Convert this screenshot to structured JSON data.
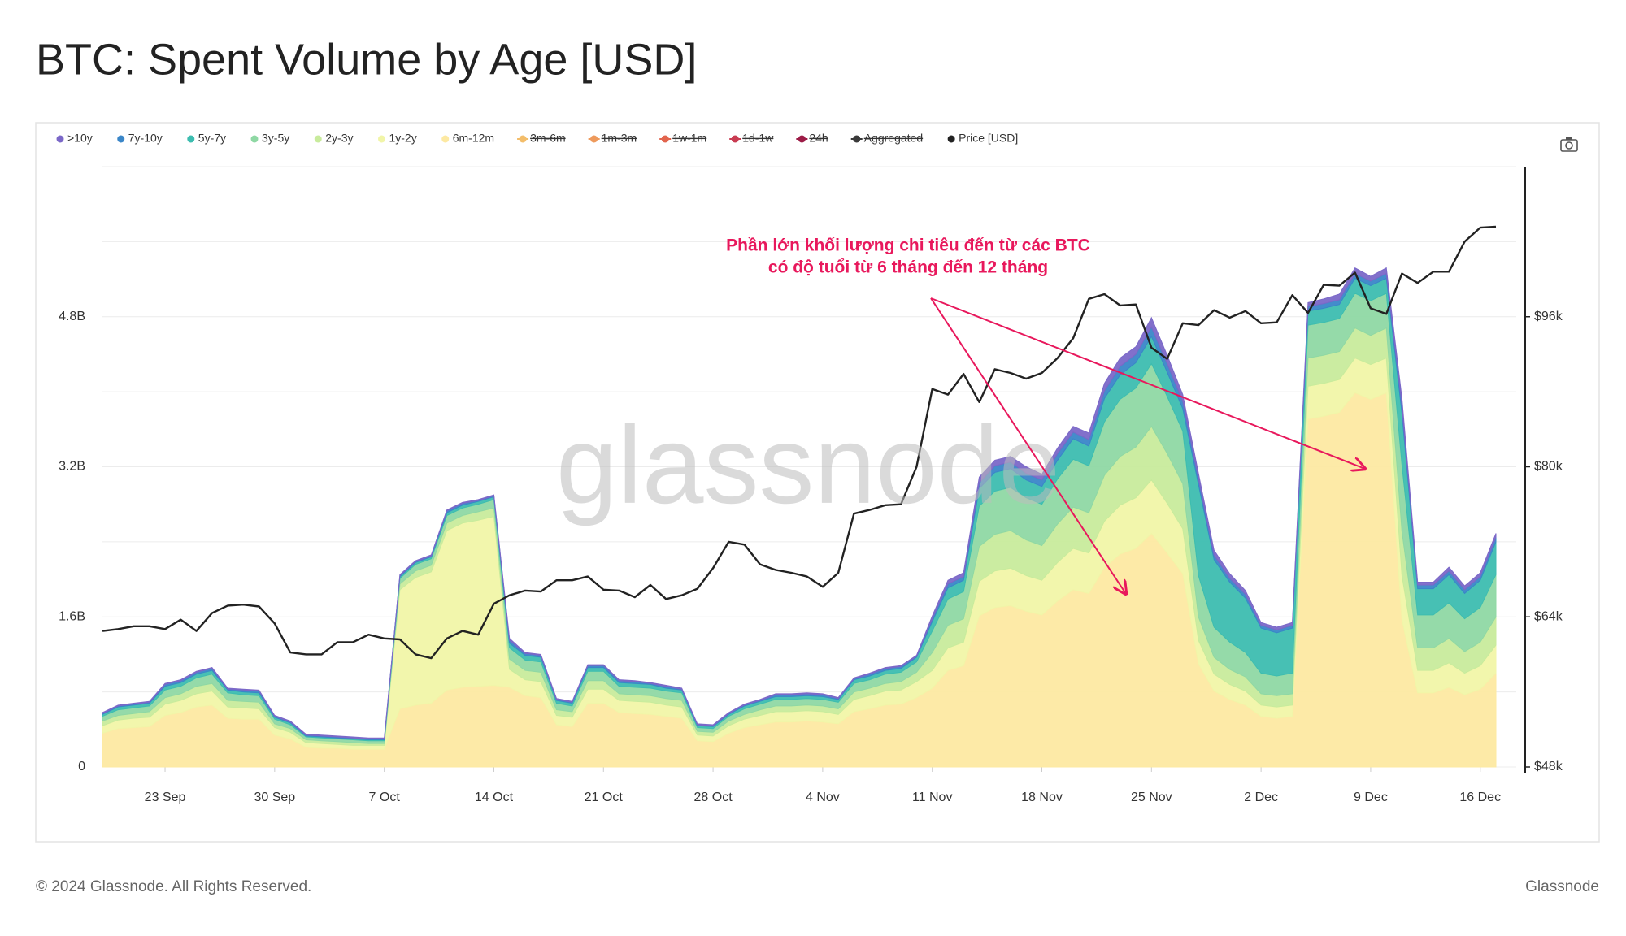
{
  "chart_data": {
    "type": "area",
    "title": "BTC: Spent Volume by Age [USD]",
    "annotation": [
      "Phần lớn khối lượng chi tiêu đến từ các BTC",
      "có độ tuổi từ 6 tháng đến 12 tháng"
    ],
    "watermark": "glassnode",
    "footer_left": "© 2024 Glassnode. All Rights Reserved.",
    "footer_right": "Glassnode",
    "x": [
      "19 Sep",
      "20 Sep",
      "21 Sep",
      "22 Sep",
      "23 Sep",
      "24 Sep",
      "25 Sep",
      "26 Sep",
      "27 Sep",
      "28 Sep",
      "29 Sep",
      "30 Sep",
      "1 Oct",
      "2 Oct",
      "3 Oct",
      "4 Oct",
      "5 Oct",
      "6 Oct",
      "7 Oct",
      "8 Oct",
      "9 Oct",
      "10 Oct",
      "11 Oct",
      "12 Oct",
      "13 Oct",
      "14 Oct",
      "15 Oct",
      "16 Oct",
      "17 Oct",
      "18 Oct",
      "19 Oct",
      "20 Oct",
      "21 Oct",
      "22 Oct",
      "23 Oct",
      "24 Oct",
      "25 Oct",
      "26 Oct",
      "27 Oct",
      "28 Oct",
      "29 Oct",
      "30 Oct",
      "31 Oct",
      "1 Nov",
      "2 Nov",
      "3 Nov",
      "4 Nov",
      "5 Nov",
      "6 Nov",
      "7 Nov",
      "8 Nov",
      "9 Nov",
      "10 Nov",
      "11 Nov",
      "12 Nov",
      "13 Nov",
      "14 Nov",
      "15 Nov",
      "16 Nov",
      "17 Nov",
      "18 Nov",
      "19 Nov",
      "20 Nov",
      "21 Nov",
      "22 Nov",
      "23 Nov",
      "24 Nov",
      "25 Nov",
      "26 Nov",
      "27 Nov",
      "28 Nov",
      "29 Nov",
      "30 Nov",
      "1 Dec",
      "2 Dec",
      "3 Dec",
      "4 Dec",
      "5 Dec",
      "6 Dec",
      "7 Dec",
      "8 Dec",
      "9 Dec",
      "10 Dec",
      "11 Dec",
      "12 Dec",
      "13 Dec",
      "14 Dec",
      "15 Dec",
      "16 Dec",
      "17 Dec"
    ],
    "xticks": [
      "23 Sep",
      "30 Sep",
      "7 Oct",
      "14 Oct",
      "21 Oct",
      "28 Oct",
      "4 Nov",
      "11 Nov",
      "18 Nov",
      "25 Nov",
      "2 Dec",
      "9 Dec",
      "16 Dec"
    ],
    "ylim": [
      0,
      6.4
    ],
    "yticks": [
      0,
      {
        "value": 1.6,
        "label": "1.6B"
      },
      {
        "value": 3.2,
        "label": "3.2B"
      },
      {
        "value": 4.8,
        "label": "4.8B"
      }
    ],
    "minor_grid": [
      0.8,
      2.4,
      4.0,
      5.6,
      6.4
    ],
    "y2lim": [
      48000,
      112000
    ],
    "y2ticks": [
      {
        "value": 48000,
        "label": "$48k"
      },
      {
        "value": 64000,
        "label": "$64k"
      },
      {
        "value": 80000,
        "label": "$80k"
      },
      {
        "value": 96000,
        "label": "$96k"
      }
    ],
    "grid": true,
    "series": [
      {
        "name": ">10y",
        "color": "#7b68c8",
        "values": [
          0.01,
          0.01,
          0.01,
          0.01,
          0.01,
          0.01,
          0.01,
          0.01,
          0.01,
          0.01,
          0.01,
          0.01,
          0.01,
          0.01,
          0.01,
          0.01,
          0.01,
          0.01,
          0.01,
          0.01,
          0.01,
          0.01,
          0.01,
          0.01,
          0.01,
          0.01,
          0.02,
          0.01,
          0.01,
          0.01,
          0.01,
          0.01,
          0.01,
          0.01,
          0.01,
          0.01,
          0.01,
          0.01,
          0.01,
          0.01,
          0.01,
          0.01,
          0.01,
          0.01,
          0.01,
          0.01,
          0.01,
          0.01,
          0.01,
          0.01,
          0.01,
          0.01,
          0.01,
          0.03,
          0.04,
          0.04,
          0.06,
          0.06,
          0.06,
          0.07,
          0.06,
          0.06,
          0.06,
          0.07,
          0.08,
          0.09,
          0.08,
          0.1,
          0.09,
          0.07,
          0.06,
          0.05,
          0.05,
          0.04,
          0.03,
          0.03,
          0.03,
          0.04,
          0.05,
          0.06,
          0.06,
          0.05,
          0.06,
          0.08,
          0.03,
          0.03,
          0.04,
          0.04,
          0.04,
          0.04
        ]
      },
      {
        "name": "7y-10y",
        "color": "#3a86c8",
        "values": [
          0.01,
          0.01,
          0.01,
          0.01,
          0.02,
          0.02,
          0.02,
          0.02,
          0.01,
          0.02,
          0.02,
          0.01,
          0.01,
          0.01,
          0.01,
          0.01,
          0.01,
          0.01,
          0.01,
          0.01,
          0.01,
          0.01,
          0.02,
          0.02,
          0.01,
          0.01,
          0.03,
          0.02,
          0.02,
          0.01,
          0.01,
          0.02,
          0.02,
          0.02,
          0.02,
          0.01,
          0.02,
          0.01,
          0.01,
          0.01,
          0.01,
          0.01,
          0.01,
          0.02,
          0.02,
          0.02,
          0.02,
          0.01,
          0.01,
          0.02,
          0.02,
          0.02,
          0.01,
          0.03,
          0.04,
          0.04,
          0.06,
          0.07,
          0.07,
          0.07,
          0.07,
          0.07,
          0.07,
          0.07,
          0.08,
          0.09,
          0.09,
          0.1,
          0.09,
          0.08,
          0.06,
          0.05,
          0.04,
          0.04,
          0.03,
          0.03,
          0.03,
          0.05,
          0.05,
          0.05,
          0.05,
          0.05,
          0.05,
          0.08,
          0.04,
          0.04,
          0.04,
          0.04,
          0.04,
          0.05
        ]
      },
      {
        "name": "5y-7y",
        "color": "#3dbdb0",
        "values": [
          0.02,
          0.03,
          0.03,
          0.03,
          0.04,
          0.04,
          0.04,
          0.04,
          0.03,
          0.03,
          0.03,
          0.02,
          0.02,
          0.01,
          0.01,
          0.01,
          0.01,
          0.01,
          0.01,
          0.02,
          0.02,
          0.02,
          0.03,
          0.03,
          0.03,
          0.03,
          0.05,
          0.05,
          0.05,
          0.03,
          0.03,
          0.04,
          0.04,
          0.04,
          0.04,
          0.04,
          0.03,
          0.03,
          0.02,
          0.02,
          0.02,
          0.03,
          0.03,
          0.03,
          0.03,
          0.03,
          0.03,
          0.03,
          0.04,
          0.04,
          0.04,
          0.04,
          0.05,
          0.1,
          0.12,
          0.12,
          0.19,
          0.2,
          0.2,
          0.19,
          0.19,
          0.2,
          0.22,
          0.21,
          0.25,
          0.26,
          0.27,
          0.29,
          0.26,
          0.24,
          0.97,
          0.72,
          0.64,
          0.58,
          0.48,
          0.46,
          0.48,
          0.15,
          0.15,
          0.15,
          0.16,
          0.16,
          0.16,
          0.55,
          0.28,
          0.28,
          0.3,
          0.27,
          0.29,
          0.35
        ]
      },
      {
        "name": "3y-5y",
        "color": "#8fd8a4",
        "values": [
          0.05,
          0.06,
          0.06,
          0.06,
          0.08,
          0.08,
          0.09,
          0.1,
          0.08,
          0.07,
          0.07,
          0.05,
          0.04,
          0.03,
          0.03,
          0.03,
          0.03,
          0.03,
          0.03,
          0.06,
          0.07,
          0.07,
          0.08,
          0.08,
          0.08,
          0.09,
          0.12,
          0.11,
          0.11,
          0.07,
          0.06,
          0.1,
          0.1,
          0.08,
          0.08,
          0.08,
          0.08,
          0.08,
          0.04,
          0.04,
          0.05,
          0.06,
          0.06,
          0.07,
          0.07,
          0.07,
          0.07,
          0.07,
          0.09,
          0.09,
          0.1,
          0.1,
          0.11,
          0.23,
          0.28,
          0.29,
          0.43,
          0.46,
          0.46,
          0.45,
          0.44,
          0.48,
          0.51,
          0.5,
          0.57,
          0.61,
          0.63,
          0.67,
          0.61,
          0.56,
          0.44,
          0.32,
          0.29,
          0.26,
          0.22,
          0.21,
          0.22,
          0.35,
          0.35,
          0.35,
          0.37,
          0.37,
          0.37,
          0.71,
          0.35,
          0.35,
          0.38,
          0.35,
          0.37,
          0.45
        ]
      },
      {
        "name": "2y-3y",
        "color": "#c8eb9c",
        "values": [
          0.05,
          0.05,
          0.05,
          0.06,
          0.07,
          0.07,
          0.08,
          0.08,
          0.07,
          0.07,
          0.07,
          0.04,
          0.04,
          0.03,
          0.03,
          0.03,
          0.03,
          0.02,
          0.02,
          0.06,
          0.07,
          0.07,
          0.08,
          0.08,
          0.09,
          0.09,
          0.11,
          0.1,
          0.1,
          0.06,
          0.06,
          0.09,
          0.09,
          0.07,
          0.07,
          0.07,
          0.07,
          0.07,
          0.04,
          0.04,
          0.05,
          0.05,
          0.06,
          0.06,
          0.06,
          0.06,
          0.06,
          0.06,
          0.08,
          0.08,
          0.08,
          0.09,
          0.1,
          0.19,
          0.24,
          0.25,
          0.37,
          0.39,
          0.4,
          0.38,
          0.37,
          0.41,
          0.44,
          0.43,
          0.49,
          0.52,
          0.54,
          0.57,
          0.53,
          0.48,
          0.25,
          0.18,
          0.16,
          0.15,
          0.12,
          0.12,
          0.12,
          0.3,
          0.3,
          0.3,
          0.32,
          0.31,
          0.32,
          0.47,
          0.24,
          0.24,
          0.26,
          0.23,
          0.25,
          0.3
        ]
      },
      {
        "name": "1y-2y",
        "color": "#f1f5a8",
        "values": [
          0.08,
          0.09,
          0.1,
          0.1,
          0.12,
          0.13,
          0.14,
          0.15,
          0.12,
          0.12,
          0.11,
          0.08,
          0.07,
          0.05,
          0.05,
          0.04,
          0.04,
          0.04,
          0.04,
          1.27,
          1.36,
          1.4,
          1.7,
          1.75,
          1.77,
          1.8,
          0.19,
          0.17,
          0.17,
          0.1,
          0.1,
          0.15,
          0.15,
          0.13,
          0.13,
          0.13,
          0.12,
          0.12,
          0.06,
          0.06,
          0.08,
          0.09,
          0.1,
          0.11,
          0.11,
          0.11,
          0.11,
          0.1,
          0.13,
          0.14,
          0.15,
          0.15,
          0.17,
          0.19,
          0.24,
          0.25,
          0.37,
          0.39,
          0.4,
          0.38,
          0.37,
          0.41,
          0.44,
          0.43,
          0.49,
          0.52,
          0.54,
          0.57,
          0.53,
          0.48,
          0.25,
          0.18,
          0.16,
          0.15,
          0.12,
          0.12,
          0.12,
          0.35,
          0.35,
          0.35,
          0.37,
          0.37,
          0.37,
          0.47,
          0.24,
          0.24,
          0.26,
          0.23,
          0.25,
          0.3
        ]
      },
      {
        "name": "6m-12m",
        "color": "#fde9a2",
        "values": [
          0.36,
          0.41,
          0.42,
          0.43,
          0.55,
          0.58,
          0.64,
          0.66,
          0.52,
          0.51,
          0.51,
          0.34,
          0.3,
          0.21,
          0.2,
          0.2,
          0.19,
          0.19,
          0.19,
          0.62,
          0.66,
          0.68,
          0.82,
          0.85,
          0.86,
          0.87,
          0.85,
          0.76,
          0.74,
          0.45,
          0.43,
          0.68,
          0.68,
          0.58,
          0.57,
          0.56,
          0.54,
          0.52,
          0.28,
          0.27,
          0.36,
          0.42,
          0.45,
          0.48,
          0.48,
          0.49,
          0.48,
          0.46,
          0.59,
          0.62,
          0.66,
          0.67,
          0.74,
          0.84,
          1.03,
          1.08,
          1.61,
          1.7,
          1.72,
          1.66,
          1.62,
          1.77,
          1.89,
          1.85,
          2.13,
          2.27,
          2.33,
          2.49,
          2.28,
          2.06,
          1.1,
          0.81,
          0.72,
          0.66,
          0.54,
          0.52,
          0.54,
          3.71,
          3.74,
          3.78,
          3.99,
          3.92,
          3.99,
          1.57,
          0.79,
          0.79,
          0.85,
          0.77,
          0.83,
          1.0
        ]
      },
      {
        "name": "3m-6m",
        "color": "#f3bd6a",
        "visible": false
      },
      {
        "name": "1m-3m",
        "color": "#ee9a5c",
        "visible": false
      },
      {
        "name": "1w-1m",
        "color": "#e2654e",
        "visible": false
      },
      {
        "name": "1d-1w",
        "color": "#c93c52",
        "visible": false
      },
      {
        "name": "24h",
        "color": "#9c1b46",
        "visible": false
      },
      {
        "name": "Aggregated",
        "color": "#3a3a3a",
        "visible": false
      },
      {
        "name": "Price [USD]",
        "color": "#222222",
        "axis": "y2",
        "values": [
          62500,
          62700,
          63000,
          63000,
          62700,
          63700,
          62500,
          64400,
          65200,
          65300,
          65100,
          63300,
          60200,
          60000,
          60000,
          61300,
          61300,
          62100,
          61700,
          61600,
          60000,
          59600,
          61700,
          62500,
          62100,
          65400,
          66300,
          66800,
          66700,
          67900,
          67900,
          68300,
          66900,
          66800,
          66100,
          67400,
          65900,
          66300,
          67000,
          69200,
          72000,
          71700,
          69600,
          69000,
          68700,
          68300,
          67200,
          68700,
          75000,
          75400,
          75900,
          76000,
          80000,
          88300,
          87700,
          89900,
          86900,
          90400,
          90000,
          89400,
          90000,
          91600,
          93700,
          97900,
          98400,
          97200,
          97300,
          92700,
          91500,
          95300,
          95100,
          96700,
          95900,
          96600,
          95300,
          95400,
          98300,
          96400,
          99400,
          99300,
          100700,
          96900,
          96300,
          100600,
          99600,
          100800,
          100800,
          104000,
          105500,
          105600
        ]
      }
    ]
  }
}
